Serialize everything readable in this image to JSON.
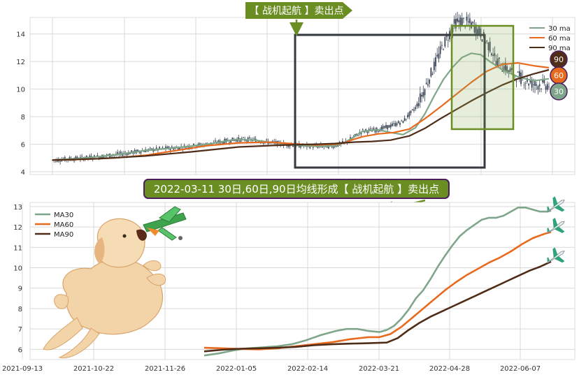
{
  "colors": {
    "ma30": "#7fa68a",
    "ma60": "#e86a1f",
    "ma90": "#4f2d18",
    "candle": "#3a4556",
    "accent_green": "#6b8e23",
    "label_border": "#4b1f5a",
    "grid": "#d9d9d9",
    "frame": "#343a40"
  },
  "top_panel": {
    "banner": "【 战机起航 】卖出点",
    "legend": [
      "30 ma",
      "60 ma",
      "90 ma"
    ],
    "badges": [
      "90",
      "60",
      "30"
    ]
  },
  "bottom_panel": {
    "annotation": "2022-03-11 30日,60日,90日均线形成【 战机起航 】卖出点",
    "legend": [
      "MA30",
      "MA60",
      "MA90"
    ],
    "decorations": [
      "dog-with-plane-illustration",
      "plane-icon"
    ]
  },
  "chart_data": [
    {
      "type": "candlestick+line",
      "ylim": [
        3.8,
        15.2
      ],
      "yticks": [
        4,
        6,
        8,
        10,
        12,
        14
      ],
      "grid": true,
      "legend_position": "top-right",
      "series": [
        {
          "name": "30 ma",
          "x": [
            0,
            15,
            30,
            45,
            60,
            80,
            100,
            118,
            130,
            140,
            150,
            160,
            170,
            176,
            182,
            188,
            194,
            200,
            210,
            218,
            226,
            234,
            240,
            246,
            252,
            258,
            264,
            270,
            276,
            282,
            290,
            300,
            310,
            320
          ],
          "values": [
            4.85,
            4.95,
            5.1,
            5.3,
            5.55,
            5.75,
            6.0,
            6.35,
            6.3,
            6.15,
            6.0,
            5.9,
            5.85,
            5.85,
            5.9,
            6.1,
            6.5,
            6.95,
            7.05,
            6.85,
            6.7,
            7.2,
            8.2,
            9.5,
            10.7,
            11.6,
            12.3,
            12.6,
            12.5,
            12.0,
            11.4,
            10.9,
            10.6,
            10.75
          ]
        },
        {
          "name": "60 ma",
          "x": [
            0,
            20,
            40,
            60,
            80,
            100,
            120,
            140,
            160,
            170,
            176,
            182,
            188,
            194,
            200,
            210,
            220,
            230,
            240,
            250,
            260,
            270,
            280,
            290,
            300,
            310,
            320
          ],
          "values": [
            4.85,
            4.9,
            5.0,
            5.2,
            5.55,
            5.9,
            6.1,
            6.15,
            6.0,
            5.95,
            5.98,
            6.0,
            6.1,
            6.35,
            6.55,
            6.75,
            6.85,
            7.1,
            7.85,
            8.7,
            9.6,
            10.5,
            11.3,
            11.8,
            11.9,
            11.7,
            11.55
          ]
        },
        {
          "name": "90 ma",
          "x": [
            0,
            30,
            60,
            90,
            120,
            150,
            170,
            182,
            194,
            206,
            218,
            230,
            240,
            250,
            260,
            270,
            280,
            290,
            300,
            310,
            320
          ],
          "values": [
            4.85,
            4.95,
            5.15,
            5.45,
            5.8,
            5.95,
            6.0,
            6.05,
            6.15,
            6.2,
            6.3,
            6.6,
            7.15,
            7.85,
            8.5,
            9.15,
            9.75,
            10.3,
            10.75,
            11.1,
            11.4
          ]
        }
      ]
    },
    {
      "type": "line",
      "xlabel": "",
      "ylabel": "",
      "ylim": [
        5.5,
        13.2
      ],
      "yticks": [
        6,
        7,
        8,
        9,
        10,
        11,
        12,
        13
      ],
      "x_tick_labels": [
        "2021-09-13",
        "2021-10-22",
        "2021-11-26",
        "2022-01-05",
        "2022-02-14",
        "2022-03-21",
        "2022-04-28",
        "2022-06-07"
      ],
      "grid": true,
      "legend_position": "top-left",
      "series": [
        {
          "name": "MA30",
          "x": [
            0,
            8,
            16,
            24,
            32,
            40,
            48,
            56,
            64,
            72,
            78,
            84,
            90,
            96,
            100,
            104,
            108,
            112,
            116,
            120,
            124,
            128,
            132,
            136,
            140,
            144,
            148,
            152,
            156,
            160,
            164,
            168,
            172,
            176,
            180,
            184,
            188,
            190
          ],
          "values": [
            5.7,
            5.8,
            5.95,
            6.05,
            6.1,
            6.15,
            6.25,
            6.45,
            6.7,
            6.9,
            7.0,
            7.0,
            6.9,
            6.85,
            6.95,
            7.15,
            7.5,
            7.95,
            8.5,
            8.9,
            9.45,
            10.05,
            10.6,
            11.1,
            11.55,
            11.85,
            12.1,
            12.35,
            12.45,
            12.45,
            12.55,
            12.75,
            12.95,
            12.95,
            12.85,
            12.75,
            12.75,
            12.8
          ]
        },
        {
          "name": "MA60",
          "x": [
            0,
            10,
            20,
            30,
            40,
            50,
            60,
            70,
            80,
            90,
            96,
            102,
            108,
            114,
            120,
            126,
            132,
            138,
            144,
            150,
            156,
            162,
            168,
            174,
            180,
            186,
            190
          ],
          "values": [
            6.08,
            6.05,
            6.02,
            6.0,
            6.05,
            6.15,
            6.25,
            6.35,
            6.5,
            6.6,
            6.6,
            6.75,
            7.1,
            7.55,
            8.0,
            8.45,
            8.9,
            9.3,
            9.65,
            9.95,
            10.25,
            10.5,
            10.8,
            11.15,
            11.45,
            11.65,
            11.75
          ]
        },
        {
          "name": "MA90",
          "x": [
            0,
            10,
            20,
            30,
            40,
            50,
            60,
            70,
            80,
            90,
            100,
            106,
            112,
            118,
            124,
            130,
            136,
            142,
            148,
            154,
            160,
            166,
            172,
            178,
            184,
            190
          ],
          "values": [
            5.9,
            5.98,
            6.03,
            6.05,
            6.08,
            6.12,
            6.2,
            6.25,
            6.28,
            6.3,
            6.33,
            6.55,
            6.95,
            7.3,
            7.6,
            7.85,
            8.1,
            8.35,
            8.6,
            8.85,
            9.1,
            9.35,
            9.6,
            9.85,
            10.05,
            10.3
          ]
        }
      ]
    }
  ]
}
